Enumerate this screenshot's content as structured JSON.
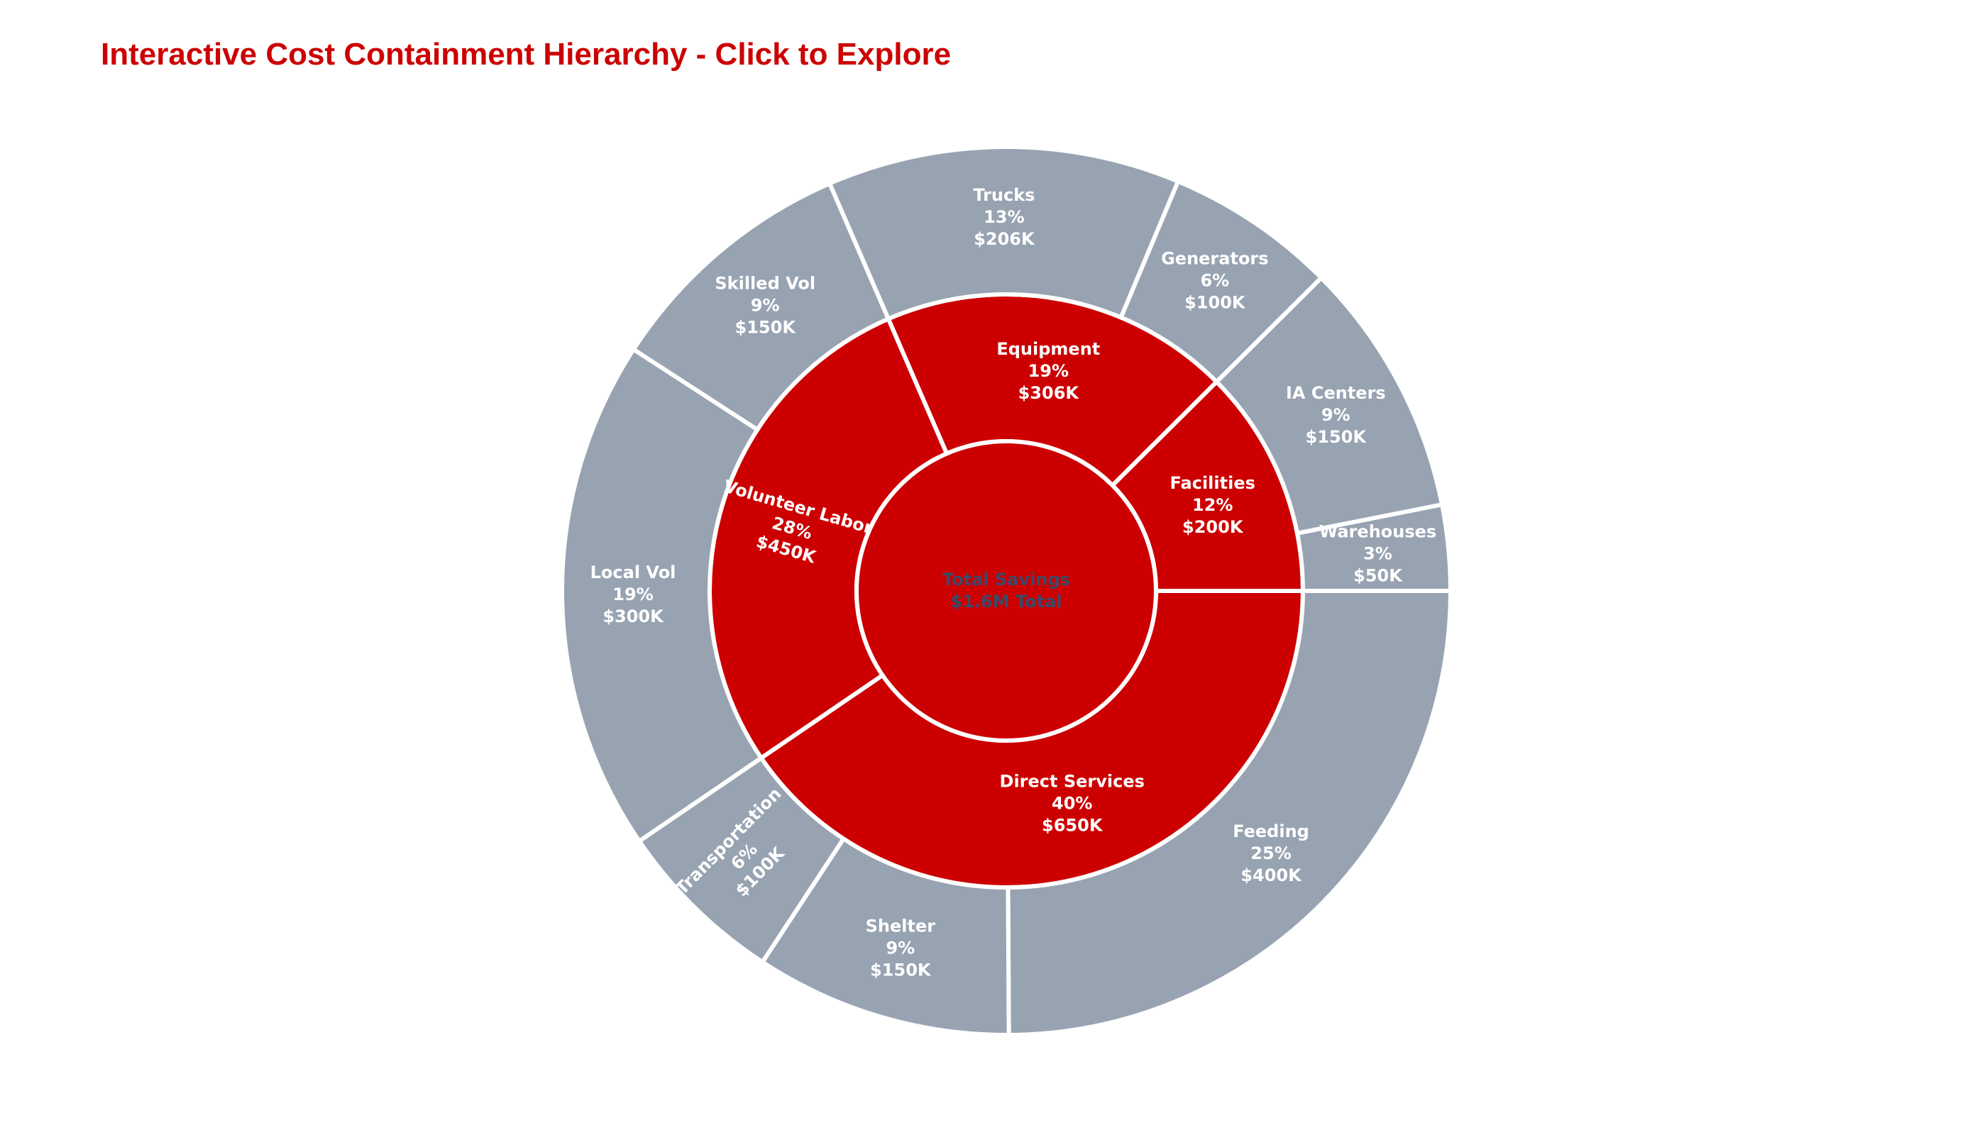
{
  "title": "Interactive Cost Containment Hierarchy - Click to Explore",
  "colors": {
    "title": "#cc0000",
    "inner": "#cc0000",
    "outer": "#98a3b2",
    "center_text": "#3a4a6b",
    "stroke": "#ffffff"
  },
  "chart_data": {
    "type": "sunburst",
    "title": "Interactive Cost Containment Hierarchy - Click to Explore",
    "root": {
      "name": "Total Savings",
      "subtitle": "$1.6M Total"
    },
    "categories": [
      {
        "name": "Direct Services",
        "percent": "40%",
        "amount": "$650K",
        "value": 650,
        "children": [
          {
            "name": "Feeding",
            "percent": "25%",
            "amount": "$400K",
            "value": 400
          },
          {
            "name": "Shelter",
            "percent": "9%",
            "amount": "$150K",
            "value": 150
          },
          {
            "name": "Transportation",
            "percent": "6%",
            "amount": "$100K",
            "value": 100
          }
        ]
      },
      {
        "name": "Volunteer Labor",
        "percent": "28%",
        "amount": "$450K",
        "value": 450,
        "children": [
          {
            "name": "Local Vol",
            "percent": "19%",
            "amount": "$300K",
            "value": 300
          },
          {
            "name": "Skilled Vol",
            "percent": "9%",
            "amount": "$150K",
            "value": 150
          }
        ]
      },
      {
        "name": "Equipment",
        "percent": "19%",
        "amount": "$306K",
        "value": 306,
        "children": [
          {
            "name": "Trucks",
            "percent": "13%",
            "amount": "$206K",
            "value": 206
          },
          {
            "name": "Generators",
            "percent": "6%",
            "amount": "$100K",
            "value": 100
          }
        ]
      },
      {
        "name": "Facilities",
        "percent": "12%",
        "amount": "$200K",
        "value": 200,
        "children": [
          {
            "name": "IA Centers",
            "percent": "9%",
            "amount": "$150K",
            "value": 150
          },
          {
            "name": "Warehouses",
            "percent": "3%",
            "amount": "$50K",
            "value": 50
          }
        ]
      }
    ]
  }
}
